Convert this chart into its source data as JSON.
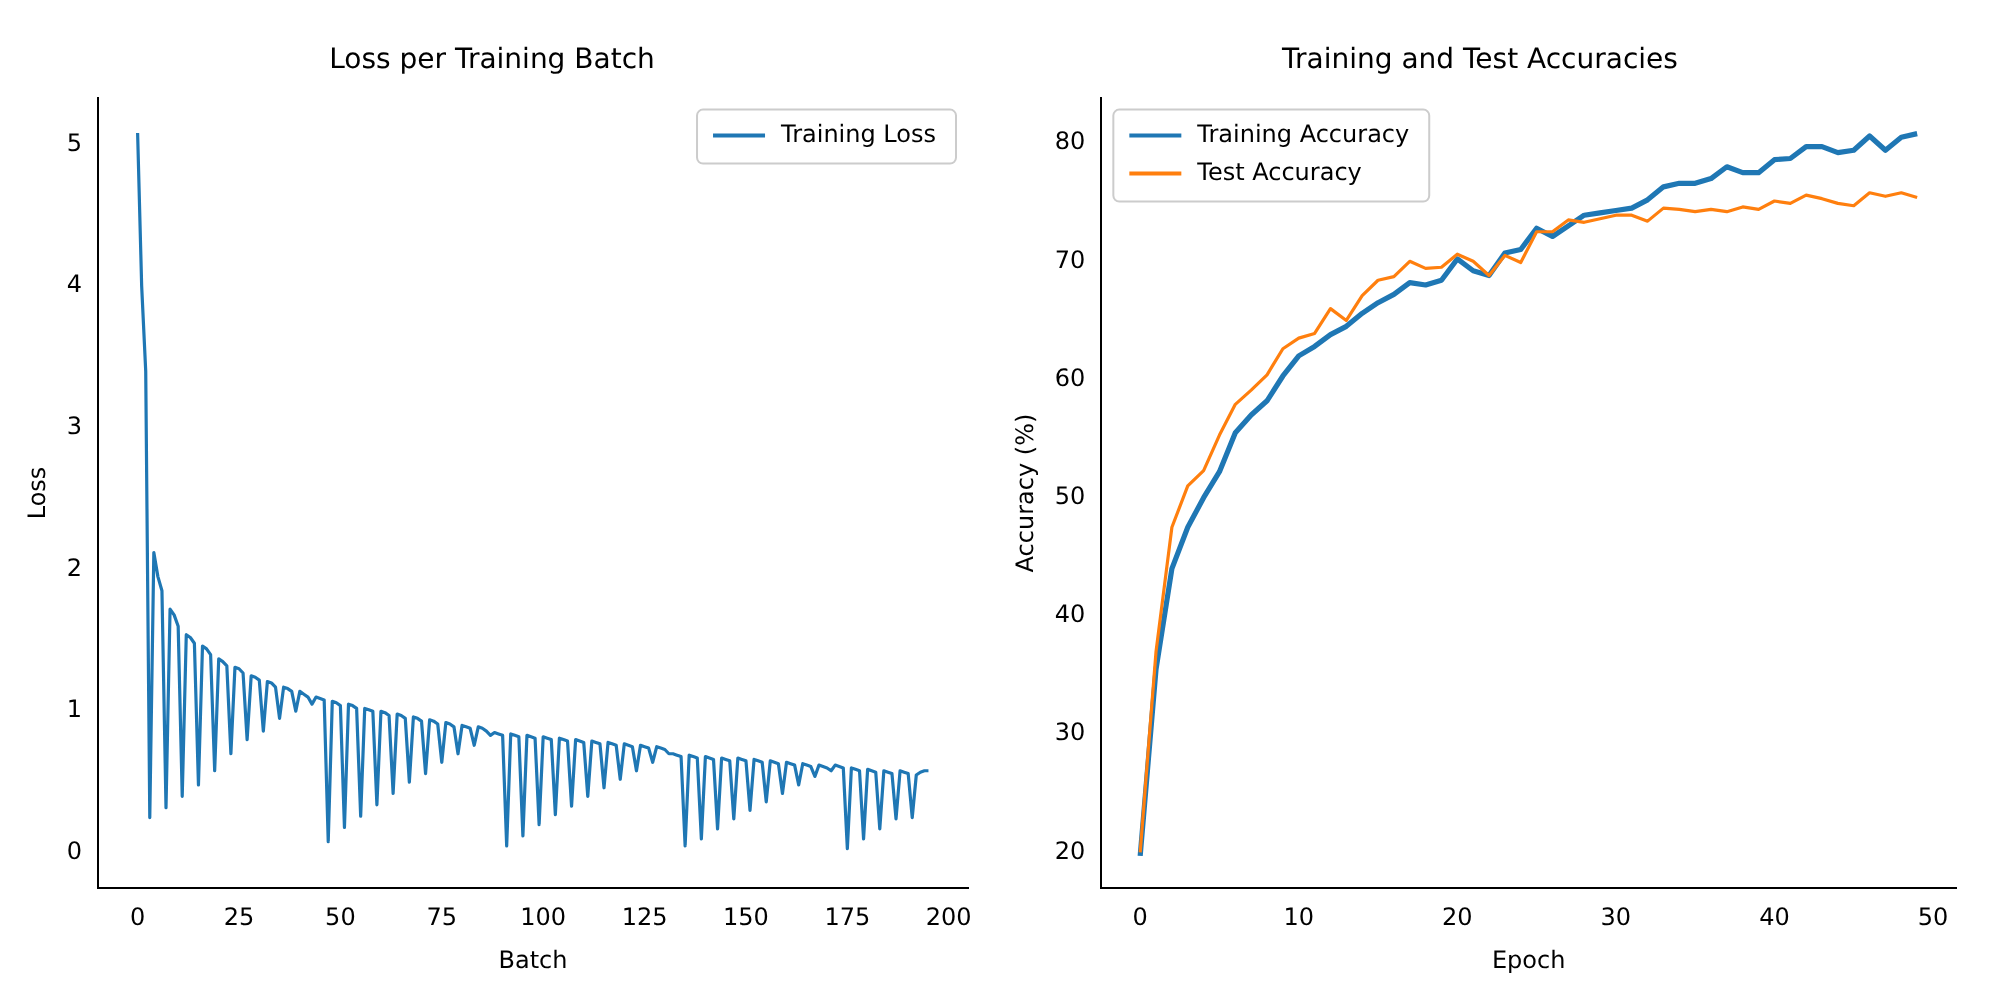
{
  "chart_data": [
    {
      "type": "line",
      "title": "Loss per Training Batch",
      "xlabel": "Batch",
      "ylabel": "Loss",
      "xlim": [
        -9.75,
        204.75
      ],
      "ylim": [
        -0.25,
        5.33
      ],
      "xticks": [
        0,
        25,
        50,
        75,
        100,
        125,
        150,
        175,
        200
      ],
      "yticks": [
        0,
        1,
        2,
        3,
        4,
        5
      ],
      "grid": false,
      "legend": "top right",
      "marker": "none",
      "line_style": "solid",
      "x": [
        0,
        1,
        2,
        3,
        4,
        5,
        6,
        7,
        8,
        9,
        10,
        11,
        12,
        13,
        14,
        15,
        16,
        17,
        18,
        19,
        20,
        21,
        22,
        23,
        24,
        25,
        26,
        27,
        28,
        29,
        30,
        31,
        32,
        33,
        34,
        35,
        36,
        37,
        38,
        39,
        40,
        41,
        42,
        43,
        44,
        45,
        46,
        47,
        48,
        49,
        50,
        51,
        52,
        53,
        54,
        55,
        56,
        57,
        58,
        59,
        60,
        61,
        62,
        63,
        64,
        65,
        66,
        67,
        68,
        69,
        70,
        71,
        72,
        73,
        74,
        75,
        76,
        77,
        78,
        79,
        80,
        81,
        82,
        83,
        84,
        85,
        86,
        87,
        88,
        89,
        90,
        91,
        92,
        93,
        94,
        95,
        96,
        97,
        98,
        99,
        100,
        101,
        102,
        103,
        104,
        105,
        106,
        107,
        108,
        109,
        110,
        111,
        112,
        113,
        114,
        115,
        116,
        117,
        118,
        119,
        120,
        121,
        122,
        123,
        124,
        125,
        126,
        127,
        128,
        129,
        130,
        131,
        132,
        133,
        134,
        135,
        136,
        137,
        138,
        139,
        140,
        141,
        142,
        143,
        144,
        145,
        146,
        147,
        148,
        149,
        150,
        151,
        152,
        153,
        154,
        155,
        156,
        157,
        158,
        159,
        160,
        161,
        162,
        163,
        164,
        165,
        166,
        167,
        168,
        169,
        170,
        171,
        172,
        173,
        174,
        175,
        176,
        177,
        178,
        179,
        180,
        181,
        182,
        183,
        184,
        185,
        186,
        187,
        188,
        189,
        190,
        191,
        192,
        193,
        194,
        195
      ],
      "series": [
        {
          "name": "Training Loss",
          "color": "#1f77b4",
          "values": [
            5.08,
            4.0,
            3.4,
            0.25,
            2.12,
            1.95,
            1.85,
            0.32,
            1.72,
            1.68,
            1.6,
            0.4,
            1.54,
            1.52,
            1.48,
            0.48,
            1.46,
            1.44,
            1.4,
            0.58,
            1.37,
            1.35,
            1.32,
            0.7,
            1.31,
            1.3,
            1.27,
            0.8,
            1.25,
            1.24,
            1.22,
            0.86,
            1.21,
            1.2,
            1.17,
            0.95,
            1.17,
            1.16,
            1.14,
            1.0,
            1.14,
            1.12,
            1.1,
            1.05,
            1.1,
            1.09,
            1.08,
            0.08,
            1.07,
            1.06,
            1.04,
            0.18,
            1.05,
            1.04,
            1.02,
            0.26,
            1.02,
            1.01,
            1.0,
            0.34,
            1.0,
            0.99,
            0.97,
            0.42,
            0.98,
            0.97,
            0.95,
            0.5,
            0.96,
            0.95,
            0.93,
            0.56,
            0.94,
            0.93,
            0.91,
            0.64,
            0.92,
            0.91,
            0.89,
            0.7,
            0.9,
            0.89,
            0.88,
            0.76,
            0.89,
            0.88,
            0.86,
            0.83,
            0.85,
            0.84,
            0.83,
            0.05,
            0.84,
            0.83,
            0.82,
            0.12,
            0.83,
            0.82,
            0.81,
            0.2,
            0.82,
            0.81,
            0.8,
            0.27,
            0.81,
            0.8,
            0.79,
            0.33,
            0.8,
            0.79,
            0.78,
            0.4,
            0.79,
            0.78,
            0.77,
            0.46,
            0.78,
            0.77,
            0.76,
            0.52,
            0.77,
            0.76,
            0.75,
            0.58,
            0.76,
            0.75,
            0.74,
            0.64,
            0.75,
            0.74,
            0.73,
            0.7,
            0.7,
            0.69,
            0.68,
            0.05,
            0.69,
            0.68,
            0.67,
            0.1,
            0.68,
            0.67,
            0.66,
            0.17,
            0.67,
            0.66,
            0.65,
            0.24,
            0.67,
            0.66,
            0.65,
            0.3,
            0.66,
            0.65,
            0.64,
            0.36,
            0.65,
            0.64,
            0.63,
            0.42,
            0.64,
            0.63,
            0.62,
            0.48,
            0.63,
            0.62,
            0.61,
            0.54,
            0.62,
            0.61,
            0.6,
            0.58,
            0.62,
            0.61,
            0.6,
            0.03,
            0.6,
            0.59,
            0.58,
            0.1,
            0.59,
            0.58,
            0.57,
            0.17,
            0.58,
            0.57,
            0.56,
            0.24,
            0.58,
            0.57,
            0.56,
            0.25,
            0.55,
            0.57,
            0.58,
            0.58
          ]
        }
      ]
    },
    {
      "type": "line",
      "title": "Training and Test Accuracies",
      "xlabel": "Epoch",
      "ylabel": "Accuracy (%)",
      "xlim": [
        -2.45,
        51.45
      ],
      "ylim": [
        16.95,
        83.85
      ],
      "xticks": [
        0,
        10,
        20,
        30,
        40,
        50
      ],
      "yticks": [
        20,
        30,
        40,
        50,
        60,
        70,
        80
      ],
      "grid": false,
      "legend": "top left",
      "marker": "none",
      "line_style": "solid",
      "x": [
        0,
        1,
        2,
        3,
        4,
        5,
        6,
        7,
        8,
        9,
        10,
        11,
        12,
        13,
        14,
        15,
        16,
        17,
        18,
        19,
        20,
        21,
        22,
        23,
        24,
        25,
        26,
        27,
        28,
        29,
        30,
        31,
        32,
        33,
        34,
        35,
        36,
        37,
        38,
        39,
        40,
        41,
        42,
        43,
        44,
        45,
        46,
        47,
        48,
        49
      ],
      "series": [
        {
          "name": "Training Accuracy",
          "color": "#1f77b4",
          "values": [
            19.7,
            35.5,
            44,
            47.5,
            50,
            52.2,
            55.5,
            57,
            58.2,
            60.3,
            62,
            62.8,
            63.8,
            64.5,
            65.6,
            66.5,
            67.2,
            68.2,
            68,
            68.4,
            70.2,
            69.2,
            68.8,
            70.7,
            71,
            72.8,
            72.1,
            73,
            73.9,
            74.1,
            74.3,
            74.5,
            75.2,
            76.3,
            76.6,
            76.6,
            77,
            78,
            77.5,
            77.5,
            78.6,
            78.7,
            79.7,
            79.7,
            79.2,
            79.4,
            80.6,
            79.4,
            80.5,
            80.8
          ]
        },
        {
          "name": "Test Accuracy",
          "color": "#ff7f0e",
          "values": [
            20,
            37,
            47.5,
            51,
            52.3,
            55.3,
            57.9,
            59.1,
            60.4,
            62.6,
            63.5,
            63.9,
            66,
            65,
            67.1,
            68.4,
            68.7,
            70,
            69.4,
            69.5,
            70.6,
            70,
            68.8,
            70.5,
            69.9,
            72.5,
            72.5,
            73.5,
            73.3,
            73.6,
            73.9,
            73.9,
            73.4,
            74.5,
            74.4,
            74.2,
            74.4,
            74.2,
            74.6,
            74.4,
            75.1,
            74.9,
            75.6,
            75.3,
            74.9,
            74.7,
            75.8,
            75.5,
            75.8,
            75.4
          ]
        }
      ]
    }
  ]
}
